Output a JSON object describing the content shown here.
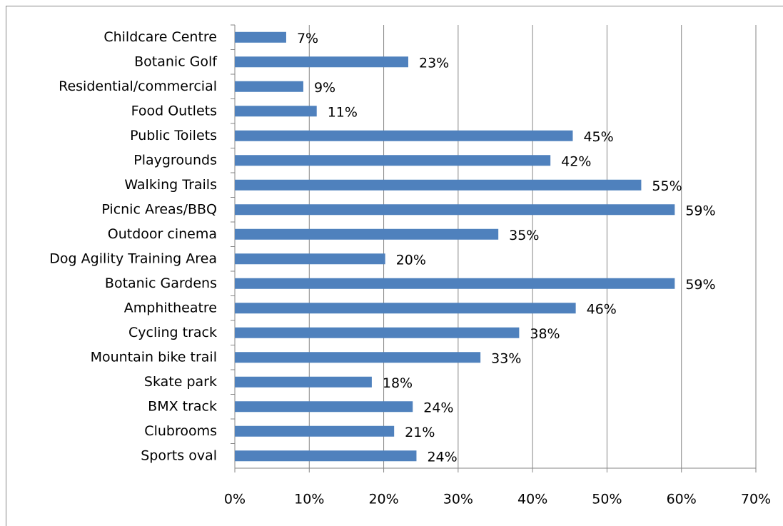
{
  "chart_data": {
    "type": "bar",
    "orientation": "horizontal",
    "categories": [
      "Childcare Centre",
      "Botanic Golf",
      "Residential/commercial",
      "Food Outlets",
      "Public Toilets",
      "Playgrounds",
      "Walking Trails",
      "Picnic Areas/BBQ",
      "Outdoor cinema",
      "Dog Agility Training Area",
      "Botanic Gardens",
      "Amphitheatre",
      "Cycling track",
      "Mountain bike trail",
      "Skate park",
      "BMX track",
      "Clubrooms",
      "Sports oval"
    ],
    "values": [
      6.9,
      23.3,
      9.2,
      11.0,
      45.4,
      42.4,
      54.6,
      59.1,
      35.4,
      20.2,
      59.1,
      45.8,
      38.2,
      33.0,
      18.4,
      23.9,
      21.4,
      24.4
    ],
    "value_labels": [
      "7%",
      "23%",
      "9%",
      "11%",
      "45%",
      "42%",
      "55%",
      "59%",
      "35%",
      "20%",
      "59%",
      "46%",
      "38%",
      "33%",
      "18%",
      "24%",
      "21%",
      "24%"
    ],
    "color": "#4f81bd",
    "xlim": [
      0,
      70
    ],
    "xticks": [
      {
        "value": 0,
        "label": "0%"
      },
      {
        "value": 10,
        "label": "10%"
      },
      {
        "value": 20,
        "label": "20%"
      },
      {
        "value": 30,
        "label": "30%"
      },
      {
        "value": 40,
        "label": "40%"
      },
      {
        "value": 50,
        "label": "50%"
      },
      {
        "value": 60,
        "label": "60%"
      },
      {
        "value": 70,
        "label": "70%"
      }
    ],
    "grid": true
  }
}
